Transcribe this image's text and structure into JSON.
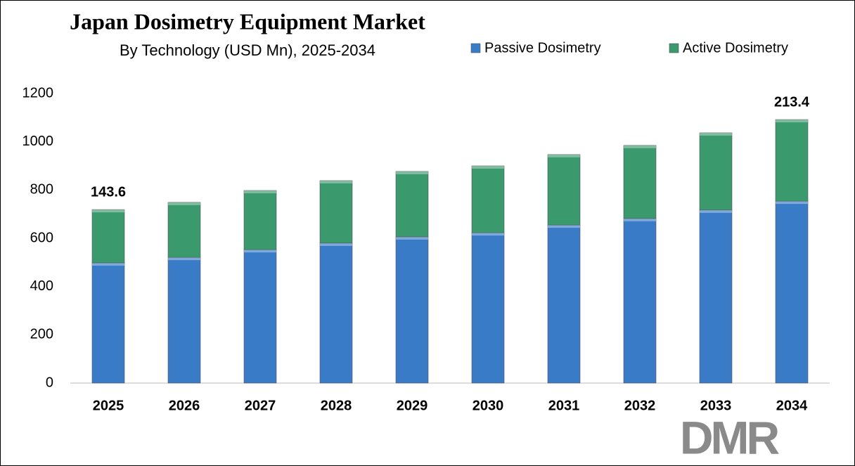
{
  "chart_data": {
    "type": "stacked-bar",
    "title": "Japan Dosimetry Equipment Market",
    "subtitle": "By Technology (USD Mn), 2025-2034",
    "categories": [
      "2025",
      "2026",
      "2027",
      "2028",
      "2029",
      "2030",
      "2031",
      "2032",
      "2033",
      "2034"
    ],
    "series": [
      {
        "name": "Passive Dosimetry",
        "color": "#3a7bc8",
        "values": [
          498,
          521,
          553,
          580,
          606,
          623,
          655,
          682,
          717,
          754
        ]
      },
      {
        "name": "Active Dosimetry",
        "color": "#3a9a6e",
        "values": [
          221,
          228,
          245,
          259,
          271,
          277,
          292,
          303,
          320,
          338
        ]
      }
    ],
    "ylim": [
      0,
      1200
    ],
    "yticks": [
      0,
      200,
      400,
      600,
      800,
      1000,
      1200
    ],
    "grid": false,
    "legend": "top-right",
    "annotations": [
      {
        "category": "2025",
        "text": "143.6"
      },
      {
        "category": "2034",
        "text": "213.4"
      }
    ],
    "logo": "DMR"
  }
}
